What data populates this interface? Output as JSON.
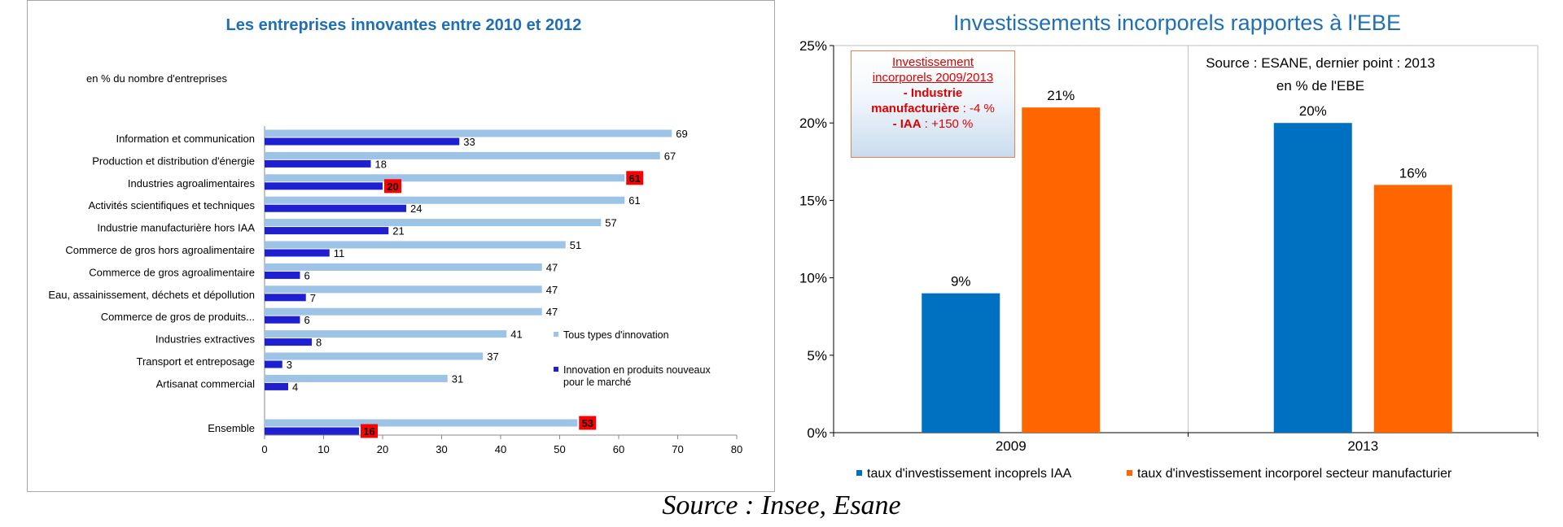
{
  "footer": {
    "source": "Source : Insee, Esane"
  },
  "chart_data": [
    {
      "type": "bar",
      "orientation": "horizontal",
      "title": "Les entreprises innovantes entre 2010 et 2012",
      "subtitle": "en % du nombre d'entreprises",
      "categories": [
        "Information et communication",
        "Production et distribution d'énergie",
        "Industries agroalimentaires",
        "Activités scientifiques et techniques",
        "Industrie manufacturière hors IAA",
        "Commerce de gros hors agroalimentaire",
        "Commerce de gros agroalimentaire",
        "Eau, assainissement, déchets et dépollution",
        "Commerce de gros de produits...",
        "Industries extractives",
        "Transport et entreposage",
        "Artisanat commercial",
        "Ensemble"
      ],
      "series": [
        {
          "name": "Tous types d'innovation",
          "color": "#9dc3e6",
          "values": [
            69,
            67,
            61,
            61,
            57,
            51,
            47,
            47,
            47,
            41,
            37,
            31,
            53
          ]
        },
        {
          "name": "Innovation en produits nouveaux pour le marché",
          "color": "#1f1fd2",
          "values": [
            33,
            18,
            20,
            24,
            21,
            11,
            6,
            7,
            6,
            8,
            3,
            4,
            16
          ]
        }
      ],
      "highlight_color": "#ff0000",
      "highlighted_labels": [
        [
          2,
          0
        ],
        [
          2,
          1
        ],
        [
          12,
          0
        ],
        [
          12,
          1
        ]
      ],
      "xlim": [
        0,
        80
      ],
      "xticks": [
        0,
        10,
        20,
        30,
        40,
        50,
        60,
        70,
        80
      ],
      "legend": "right"
    },
    {
      "type": "bar",
      "title": "Investissements incorporels rapportes à l'EBE",
      "annotation": "Source : ESANE, dernier point : 2013",
      "ylabel_note": "en % de l'EBE",
      "categories": [
        "2009",
        "2013"
      ],
      "series": [
        {
          "name": "taux d'investissement incoprels IAA",
          "color": "#0070c0",
          "values": [
            9,
            20
          ],
          "labels": [
            "9%",
            "20%"
          ]
        },
        {
          "name": "taux d'investissement incorporel secteur manufacturier",
          "color": "#ff6600",
          "values": [
            21,
            16
          ],
          "labels": [
            "21%",
            "16%"
          ]
        }
      ],
      "ylim": [
        0,
        25
      ],
      "yticks": [
        "0%",
        "5%",
        "10%",
        "15%",
        "20%",
        "25%"
      ],
      "grid": "vertical",
      "legend": "bottom",
      "note_box": {
        "line1": "Investissement",
        "line2": "incorporels 2009/2013",
        "line3": "- Industrie",
        "line4a": "manufacturière",
        "line4b": " : -4 %",
        "line5a": "- IAA",
        "line5b": " : +150 %"
      }
    }
  ]
}
